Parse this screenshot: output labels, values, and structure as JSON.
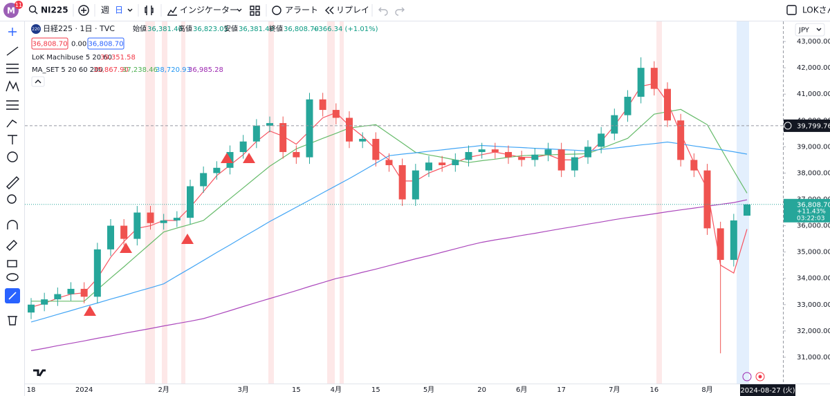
{
  "toolbar": {
    "avatar": "M",
    "badge": "11",
    "symbol": "NI225",
    "interval_week": "週",
    "interval_day": "日",
    "indicators": "インジケーター",
    "alert": "アラート",
    "replay": "リプレイ",
    "user": "LOKさん"
  },
  "legend": {
    "badge": "220",
    "title": "日経225 · 1日 · TVC",
    "open_label": "始値",
    "open": "36,381.40",
    "high_label": "高値",
    "high": "36,823.05",
    "low_label": "安値",
    "low": "36,381.40",
    "close_label": "終値",
    "close": "36,808.70",
    "change": "+366.34 (+1.01%)",
    "sell": "36,808.70",
    "spread": "0.00",
    "buy": "36,808.70",
    "indicator1": "LoK Machibuse 5 20 60",
    "indicator1_value": "39,351.58",
    "indicator2": "MA_SET 5 20 60 200",
    "indicator2_values": [
      "35,867.90",
      "37,238.46",
      "38,720.93",
      "36,985.28"
    ]
  },
  "chart_data": {
    "type": "candlestick",
    "currency": "JPY",
    "up_color": "#26a69a",
    "down_color": "#ef5350",
    "categories": [
      "18",
      null,
      null,
      null,
      "2024",
      null,
      null,
      null,
      null,
      null,
      "2月",
      null,
      null,
      null,
      null,
      null,
      "3月",
      null,
      null,
      null,
      "15",
      null,
      null,
      "4月",
      null,
      null,
      "15",
      null,
      null,
      null,
      "5月",
      null,
      null,
      null,
      "20",
      null,
      null,
      "6月",
      null,
      null,
      "17",
      null,
      null,
      null,
      "7月",
      null,
      null,
      "16",
      null,
      null,
      null,
      "8月",
      null,
      null,
      null
    ],
    "open": [
      32700,
      33000,
      33200,
      33400,
      33600,
      33300,
      35100,
      36000,
      35500,
      36500,
      36100,
      36200,
      36300,
      37500,
      38000,
      38200,
      38800,
      39200,
      39800,
      39900,
      38800,
      38600,
      40800,
      40400,
      40100,
      39200,
      39300,
      38500,
      38300,
      37000,
      38100,
      38400,
      38300,
      38500,
      38800,
      38900,
      38800,
      38600,
      38500,
      38700,
      38900,
      38100,
      38600,
      39000,
      39500,
      40200,
      40900,
      42000,
      41200,
      40000,
      38500,
      38100,
      35900,
      34700,
      36381.4
    ],
    "high": [
      33250,
      33450,
      33650,
      33850,
      33850,
      35350,
      36250,
      36250,
      36750,
      36750,
      36450,
      36550,
      37750,
      38250,
      38450,
      39050,
      39450,
      40050,
      40150,
      40150,
      39050,
      41050,
      41050,
      40650,
      40350,
      39550,
      39550,
      38750,
      38550,
      38350,
      38650,
      38650,
      38750,
      39050,
      39150,
      39150,
      39050,
      38850,
      38950,
      39150,
      39150,
      38850,
      39250,
      39750,
      40450,
      41150,
      42400,
      42250,
      41450,
      40250,
      38750,
      38350,
      36150,
      36450,
      36823.05
    ],
    "low": [
      32450,
      32750,
      32950,
      33150,
      33050,
      33050,
      34850,
      35250,
      35250,
      35850,
      35850,
      35950,
      36050,
      37250,
      37750,
      37950,
      38550,
      38950,
      39550,
      38550,
      38350,
      38350,
      40150,
      39850,
      38950,
      38950,
      38250,
      38050,
      36750,
      36750,
      37850,
      38050,
      38050,
      38250,
      38550,
      38550,
      38350,
      38250,
      38250,
      38450,
      37850,
      37850,
      38350,
      38750,
      39250,
      39950,
      40650,
      40950,
      39750,
      38250,
      37850,
      35650,
      31150,
      34450,
      36381.4
    ],
    "close": [
      33000,
      33200,
      33400,
      33600,
      33300,
      35100,
      36000,
      35500,
      36500,
      36100,
      36200,
      36300,
      37500,
      38000,
      38200,
      38800,
      39200,
      39800,
      39900,
      38800,
      38600,
      40800,
      40400,
      40100,
      39200,
      39300,
      38500,
      38300,
      37000,
      38100,
      38400,
      38300,
      38500,
      38800,
      38900,
      38800,
      38600,
      38500,
      38700,
      38900,
      38100,
      38600,
      39000,
      39500,
      40200,
      40900,
      42000,
      41200,
      40000,
      38500,
      38100,
      35900,
      34700,
      36200,
      36808.7
    ],
    "series": [
      {
        "color": "#f7525f",
        "values": [
          32900,
          33050,
          33250,
          33400,
          33450,
          34000,
          34800,
          35400,
          35900,
          36000,
          36200,
          36200,
          36700,
          37300,
          37900,
          38300,
          38700,
          39200,
          39600,
          39400,
          39100,
          39600,
          40100,
          40300,
          39800,
          39400,
          38900,
          38500,
          37700,
          37700,
          38000,
          38200,
          38400,
          38600,
          38700,
          38800,
          38700,
          38600,
          38600,
          38700,
          38500,
          38500,
          38700,
          39200,
          39800,
          40500,
          41300,
          41400,
          40700,
          39500,
          38400,
          37400,
          34500,
          34200,
          35867.9
        ]
      },
      {
        "color": "#66bb6a",
        "values": [
          33130,
          33130,
          33130,
          33130,
          33130,
          33570,
          34010,
          34440,
          34880,
          35320,
          35760,
          35910,
          36050,
          36200,
          36610,
          37030,
          37440,
          37850,
          38260,
          38590,
          38920,
          39120,
          39320,
          39510,
          39710,
          39780,
          39840,
          39490,
          39140,
          38790,
          38690,
          38600,
          38500,
          38400,
          38470,
          38530,
          38600,
          38660,
          38680,
          38690,
          38710,
          38720,
          38740,
          38930,
          39130,
          39320,
          39780,
          40240,
          40330,
          40420,
          40130,
          39840,
          38960,
          38090,
          37238.46
        ]
      },
      {
        "color": "#42a5f5",
        "values": [
          32340,
          32480,
          32630,
          32770,
          32920,
          33060,
          33210,
          33350,
          33500,
          33640,
          33790,
          34090,
          34380,
          34680,
          34980,
          35270,
          35570,
          35860,
          36160,
          36430,
          36700,
          36970,
          37250,
          37520,
          37790,
          38080,
          38370,
          38660,
          38720,
          38770,
          38830,
          38880,
          38940,
          38990,
          39050,
          39020,
          38990,
          38970,
          38940,
          38920,
          38890,
          38870,
          38840,
          38900,
          38950,
          39010,
          39070,
          39120,
          39180,
          39110,
          39030,
          38960,
          38890,
          38810,
          38720.93
        ]
      },
      {
        "color": "#ab47bc",
        "values": [
          31250,
          31340,
          31440,
          31530,
          31620,
          31720,
          31810,
          31910,
          32000,
          32090,
          32190,
          32280,
          32370,
          32470,
          32620,
          32770,
          32930,
          33080,
          33230,
          33380,
          33530,
          33690,
          33840,
          33990,
          34100,
          34230,
          34350,
          34480,
          34610,
          34740,
          34860,
          34990,
          35120,
          35250,
          35370,
          35460,
          35540,
          35630,
          35710,
          35800,
          35890,
          35970,
          36060,
          36140,
          36230,
          36310,
          36380,
          36450,
          36530,
          36600,
          36670,
          36740,
          36810,
          36880,
          36985.28
        ]
      }
    ],
    "ylim": [
      30000,
      43790
    ],
    "yticks": [
      {
        "value": 43000,
        "label": "43,000.00"
      },
      {
        "value": 42000,
        "label": "42,000.00"
      },
      {
        "value": 41000,
        "label": "41,000.00"
      },
      {
        "value": 40000,
        "label": "40,000.00"
      },
      {
        "value": 39000,
        "label": "39,000.00"
      },
      {
        "value": 38000,
        "label": "38,000.00"
      },
      {
        "value": 37000,
        "label": "37,000.00"
      },
      {
        "value": 36000,
        "label": "36,000.00"
      },
      {
        "value": 35000,
        "label": "35,000.00"
      },
      {
        "value": 34000,
        "label": "34,000.00"
      },
      {
        "value": 33000,
        "label": "33,000.00"
      },
      {
        "value": 32000,
        "label": "32,000.00"
      },
      {
        "value": 31000,
        "label": "31,000.00"
      }
    ],
    "crosshair": {
      "value": 39799.76,
      "label": "39,799.76"
    },
    "crosshair_time": "2024-08-27 (火)",
    "last_price": {
      "value": 36808.7,
      "label": "36,808.70",
      "change": "+11.43%",
      "countdown": "03:22:03"
    },
    "grid": false
  }
}
